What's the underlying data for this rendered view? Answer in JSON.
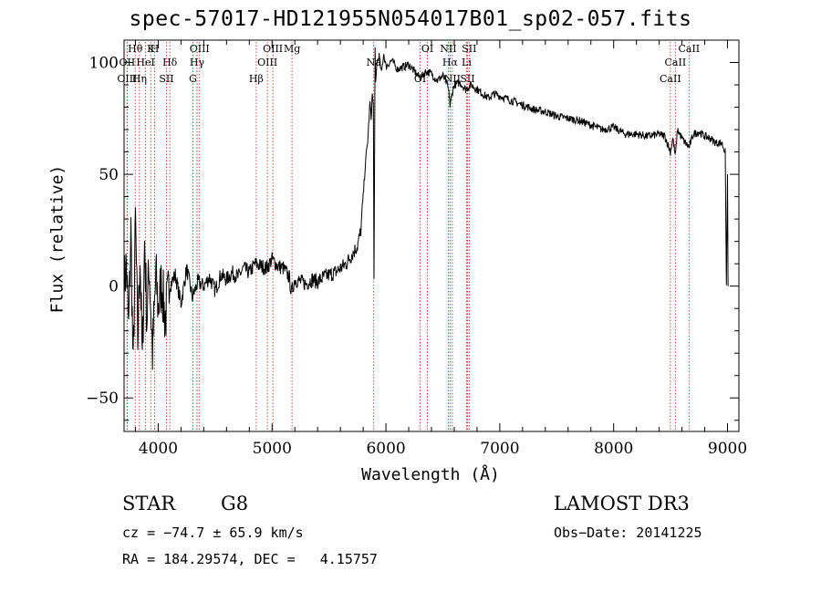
{
  "chart_data": {
    "type": "line",
    "title": "spec-57017-HD121955N054017B01_sp02-057.fits",
    "xlabel": "Wavelength (Å)",
    "ylabel": "Flux (relative)",
    "xlim": [
      3700,
      9100
    ],
    "ylim": [
      -65,
      110
    ],
    "xticks": [
      4000,
      5000,
      6000,
      7000,
      8000,
      9000
    ],
    "yticks": [
      -50,
      0,
      50,
      100
    ],
    "grid": false,
    "series": [
      {
        "name": "spectrum",
        "x": [
          3700,
          3720,
          3740,
          3760,
          3780,
          3800,
          3820,
          3840,
          3860,
          3880,
          3900,
          3920,
          3950,
          3980,
          4000,
          4030,
          4060,
          4100,
          4150,
          4200,
          4250,
          4300,
          4350,
          4400,
          4450,
          4500,
          4550,
          4600,
          4650,
          4700,
          4750,
          4800,
          4850,
          4900,
          4950,
          5000,
          5050,
          5100,
          5150,
          5170,
          5200,
          5250,
          5300,
          5350,
          5400,
          5450,
          5500,
          5550,
          5600,
          5650,
          5700,
          5750,
          5780,
          5800,
          5820,
          5840,
          5860,
          5870,
          5880,
          5890,
          5895,
          5900,
          5905,
          5910,
          5920,
          5940,
          5960,
          5980,
          6000,
          6050,
          6100,
          6150,
          6200,
          6250,
          6300,
          6350,
          6400,
          6450,
          6500,
          6520,
          6540,
          6560,
          6563,
          6580,
          6600,
          6650,
          6700,
          6750,
          6800,
          6850,
          6900,
          6950,
          7000,
          7100,
          7200,
          7300,
          7400,
          7500,
          7600,
          7700,
          7800,
          7900,
          8000,
          8100,
          8200,
          8300,
          8400,
          8450,
          8498,
          8520,
          8542,
          8560,
          8600,
          8662,
          8700,
          8750,
          8800,
          8850,
          8900,
          8950,
          8980,
          8990,
          9000,
          9005
        ],
        "y": [
          0,
          10,
          -20,
          25,
          -40,
          30,
          -25,
          15,
          -35,
          20,
          -15,
          10,
          -30,
          5,
          -10,
          2,
          -15,
          0,
          5,
          -8,
          8,
          -5,
          2,
          0,
          4,
          -2,
          5,
          3,
          6,
          4,
          8,
          6,
          10,
          9,
          8,
          12,
          9,
          8,
          4,
          -3,
          3,
          2,
          1,
          3,
          2,
          4,
          5,
          6,
          8,
          10,
          14,
          18,
          25,
          40,
          55,
          65,
          82,
          75,
          86,
          80,
          5,
          55,
          105,
          90,
          100,
          103,
          95,
          104,
          98,
          101,
          97,
          98,
          99,
          96,
          93,
          96,
          95,
          92,
          94,
          92,
          90,
          84,
          80,
          86,
          90,
          91,
          88,
          90,
          88,
          86,
          84,
          86,
          85,
          83,
          81,
          79,
          78,
          76,
          75,
          74,
          72,
          70,
          71,
          68,
          68,
          67,
          68,
          67,
          60,
          66,
          58,
          70,
          66,
          62,
          68,
          69,
          67,
          66,
          64,
          64,
          60,
          0,
          50,
          0
        ]
      }
    ],
    "line_markers": [
      {
        "label": "Hθ",
        "wavelength": 3798
      },
      {
        "label": "OII",
        "wavelength": 3727
      },
      {
        "label": "OIII",
        "wavelength": 3727
      },
      {
        "label": "K",
        "wavelength": 3934
      },
      {
        "label": "HeI",
        "wavelength": 3889
      },
      {
        "label": "Hη",
        "wavelength": 3835
      },
      {
        "label": "H",
        "wavelength": 3969
      },
      {
        "label": "Hδ",
        "wavelength": 4102
      },
      {
        "label": "SII",
        "wavelength": 4072
      },
      {
        "label": "OIII",
        "wavelength": 4363
      },
      {
        "label": "Hγ",
        "wavelength": 4341
      },
      {
        "label": "G",
        "wavelength": 4305
      },
      {
        "label": "OIII",
        "wavelength": 5007
      },
      {
        "label": "OIII",
        "wavelength": 4959
      },
      {
        "label": "Hβ",
        "wavelength": 4861
      },
      {
        "label": "Mg",
        "wavelength": 5175
      },
      {
        "label": "Na",
        "wavelength": 5893
      },
      {
        "label": "OI",
        "wavelength": 6300
      },
      {
        "label": "OI",
        "wavelength": 6364
      },
      {
        "label": "Hα",
        "wavelength": 6563
      },
      {
        "label": "SII",
        "wavelength": 6716
      },
      {
        "label": "NII",
        "wavelength": 6548
      },
      {
        "label": "Li",
        "wavelength": 6708
      },
      {
        "label": "NII",
        "wavelength": 6583
      },
      {
        "label": "SII",
        "wavelength": 6731
      },
      {
        "label": "CaII",
        "wavelength": 8542
      },
      {
        "label": "CaII",
        "wavelength": 8498
      },
      {
        "label": "CaII",
        "wavelength": 8662
      }
    ]
  },
  "info": {
    "class": "STAR",
    "subclass": "G8",
    "survey": "LAMOST DR3",
    "cz": "cz = −74.7 ± 65.9 km/s",
    "obs_date": "Obs−Date: 20141225",
    "coords": "RA = 184.29574, DEC =   4.15757"
  }
}
